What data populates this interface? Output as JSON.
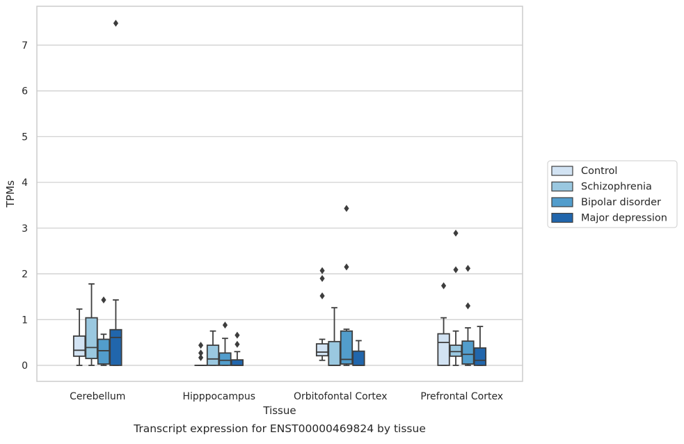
{
  "caption": "Transcript expression for ENST00000469824 by tissue",
  "colors": {
    "Control": "#d2e3f3",
    "Schizophrenia": "#9ac8e0",
    "Bipolar disorder": "#529dcc",
    "Major depression": "#2166ac",
    "edge": "#3d3d3d",
    "grid": "#cccccc"
  },
  "chart_data": {
    "type": "box",
    "title": "",
    "xlabel": "Tissue",
    "ylabel": "TPMs",
    "ylim": [
      -0.35,
      7.85
    ],
    "yticks": [
      0,
      1,
      2,
      3,
      4,
      5,
      6,
      7
    ],
    "grid": true,
    "legend_position": "right",
    "categories": [
      "Cerebellum",
      "Hipppocampus",
      "Orbitofontal Cortex",
      "Prefrontal Cortex"
    ],
    "series": [
      {
        "name": "Control",
        "boxes": [
          {
            "whisker_low": 0.0,
            "q1": 0.2,
            "median": 0.33,
            "q3": 0.64,
            "whisker_high": 1.23,
            "outliers": []
          },
          {
            "whisker_low": 0.0,
            "q1": 0.0,
            "median": 0.0,
            "q3": 0.0,
            "whisker_high": 0.0,
            "outliers": [
              0.17,
              0.27,
              0.44
            ]
          },
          {
            "whisker_low": 0.11,
            "q1": 0.21,
            "median": 0.29,
            "q3": 0.47,
            "whisker_high": 0.57,
            "outliers": [
              1.52,
              1.9,
              2.07
            ]
          },
          {
            "whisker_low": 0.0,
            "q1": 0.0,
            "median": 0.5,
            "q3": 0.69,
            "whisker_high": 1.04,
            "outliers": [
              1.74
            ]
          }
        ]
      },
      {
        "name": "Schizophrenia",
        "boxes": [
          {
            "whisker_low": 0.0,
            "q1": 0.15,
            "median": 0.39,
            "q3": 1.04,
            "whisker_high": 1.78,
            "outliers": []
          },
          {
            "whisker_low": 0.0,
            "q1": 0.0,
            "median": 0.14,
            "q3": 0.44,
            "whisker_high": 0.75,
            "outliers": []
          },
          {
            "whisker_low": 0.0,
            "q1": 0.0,
            "median": 0.0,
            "q3": 0.52,
            "whisker_high": 1.26,
            "outliers": []
          },
          {
            "whisker_low": 0.0,
            "q1": 0.2,
            "median": 0.3,
            "q3": 0.44,
            "whisker_high": 0.75,
            "outliers": [
              2.09,
              2.89
            ]
          }
        ]
      },
      {
        "name": "Bipolar disorder",
        "boxes": [
          {
            "whisker_low": 0.0,
            "q1": 0.03,
            "median": 0.32,
            "q3": 0.57,
            "whisker_high": 0.68,
            "outliers": [
              1.43
            ]
          },
          {
            "whisker_low": 0.0,
            "q1": 0.0,
            "median": 0.11,
            "q3": 0.27,
            "whisker_high": 0.59,
            "outliers": [
              0.88
            ]
          },
          {
            "whisker_low": 0.0,
            "q1": 0.03,
            "median": 0.13,
            "q3": 0.75,
            "whisker_high": 0.79,
            "outliers": [
              2.15,
              3.43
            ]
          },
          {
            "whisker_low": 0.0,
            "q1": 0.03,
            "median": 0.24,
            "q3": 0.53,
            "whisker_high": 0.82,
            "outliers": [
              1.3,
              2.12
            ]
          }
        ]
      },
      {
        "name": "Major depression",
        "boxes": [
          {
            "whisker_low": 0.0,
            "q1": 0.0,
            "median": 0.61,
            "q3": 0.78,
            "whisker_high": 1.43,
            "outliers": [
              7.48
            ]
          },
          {
            "whisker_low": 0.0,
            "q1": 0.0,
            "median": 0.0,
            "q3": 0.12,
            "whisker_high": 0.3,
            "outliers": [
              0.46,
              0.66
            ]
          },
          {
            "whisker_low": 0.0,
            "q1": 0.0,
            "median": 0.0,
            "q3": 0.31,
            "whisker_high": 0.54,
            "outliers": []
          },
          {
            "whisker_low": 0.0,
            "q1": 0.0,
            "median": 0.11,
            "q3": 0.38,
            "whisker_high": 0.85,
            "outliers": []
          }
        ]
      }
    ]
  }
}
